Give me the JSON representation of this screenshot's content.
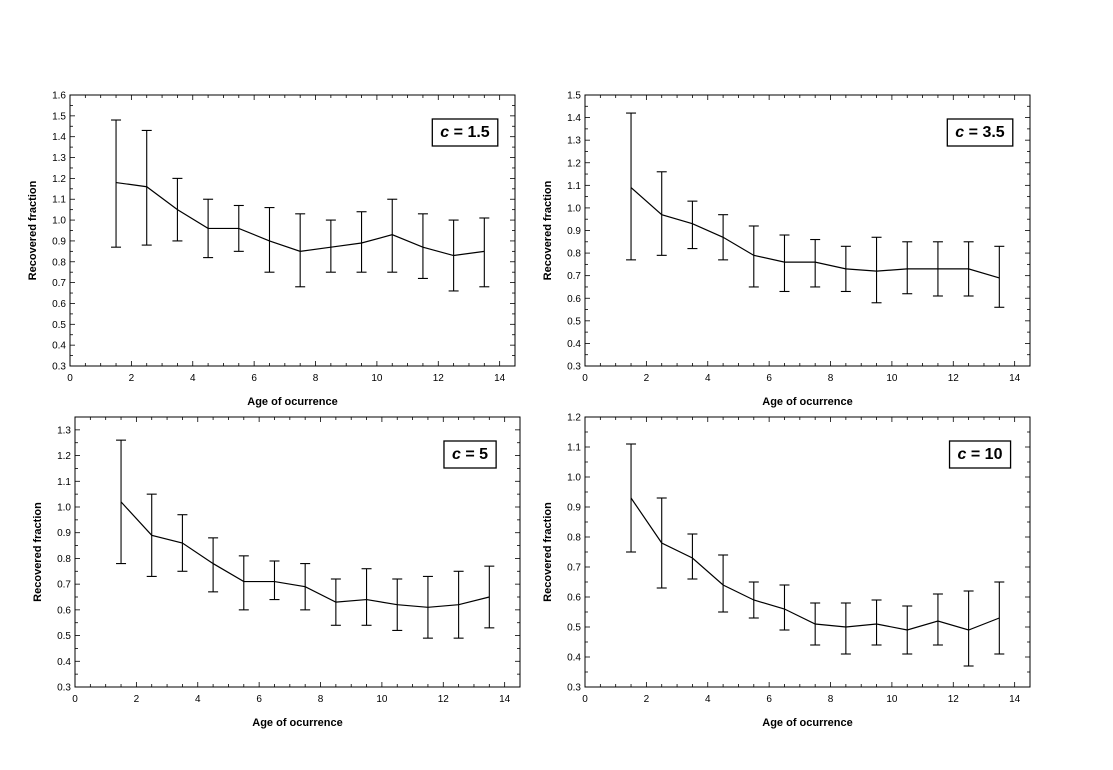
{
  "figure_title": "",
  "chart_data": [
    {
      "type": "line",
      "title": "",
      "legend_variable": "c",
      "legend_value": "1.5",
      "legend_placement": "top-right",
      "xlabel": "Age of ocurrence",
      "ylabel": "Recovered fraction",
      "xlim": [
        0,
        14.5
      ],
      "ylim": [
        0.3,
        1.6
      ],
      "xticks": [
        0,
        2,
        4,
        6,
        8,
        10,
        12,
        14
      ],
      "yticks": [
        0.3,
        0.4,
        0.5,
        0.6,
        0.7,
        0.8,
        0.9,
        1.0,
        1.1,
        1.2,
        1.3,
        1.4,
        1.5,
        1.6
      ],
      "y_decimals": 1,
      "grid": false,
      "series": [
        {
          "name": "Recovered fraction",
          "x": [
            1.5,
            2.5,
            3.5,
            4.5,
            5.5,
            6.5,
            7.5,
            8.5,
            9.5,
            10.5,
            11.5,
            12.5,
            13.5
          ],
          "y": [
            1.18,
            1.16,
            1.05,
            0.96,
            0.96,
            0.9,
            0.85,
            0.87,
            0.89,
            0.93,
            0.87,
            0.83,
            0.85
          ],
          "err_low": [
            0.87,
            0.88,
            0.9,
            0.82,
            0.85,
            0.75,
            0.68,
            0.75,
            0.75,
            0.75,
            0.72,
            0.66,
            0.68
          ],
          "err_high": [
            1.48,
            1.43,
            1.2,
            1.1,
            1.07,
            1.06,
            1.03,
            1.0,
            1.04,
            1.1,
            1.03,
            1.0,
            1.01
          ]
        }
      ]
    },
    {
      "type": "line",
      "title": "",
      "legend_variable": "c",
      "legend_value": "3.5",
      "legend_placement": "top-right",
      "xlabel": "Age of ocurrence",
      "ylabel": "Recovered fraction",
      "xlim": [
        0,
        14.5
      ],
      "ylim": [
        0.3,
        1.5
      ],
      "xticks": [
        0,
        2,
        4,
        6,
        8,
        10,
        12,
        14
      ],
      "yticks": [
        0.3,
        0.4,
        0.5,
        0.6,
        0.7,
        0.8,
        0.9,
        1.0,
        1.1,
        1.2,
        1.3,
        1.4,
        1.5
      ],
      "y_decimals": 1,
      "grid": false,
      "series": [
        {
          "name": "Recovered fraction",
          "x": [
            1.5,
            2.5,
            3.5,
            4.5,
            5.5,
            6.5,
            7.5,
            8.5,
            9.5,
            10.5,
            11.5,
            12.5,
            13.5
          ],
          "y": [
            1.09,
            0.97,
            0.93,
            0.87,
            0.79,
            0.76,
            0.76,
            0.73,
            0.72,
            0.73,
            0.73,
            0.73,
            0.69
          ],
          "err_low": [
            0.77,
            0.79,
            0.82,
            0.77,
            0.65,
            0.63,
            0.65,
            0.63,
            0.58,
            0.62,
            0.61,
            0.61,
            0.56
          ],
          "err_high": [
            1.42,
            1.16,
            1.03,
            0.97,
            0.92,
            0.88,
            0.86,
            0.83,
            0.87,
            0.85,
            0.85,
            0.85,
            0.83
          ]
        }
      ]
    },
    {
      "type": "line",
      "title": "",
      "legend_variable": "c",
      "legend_value": "5",
      "legend_placement": "top-right",
      "xlabel": "Age of ocurrence",
      "ylabel": "Recovered fraction",
      "xlim": [
        0,
        14.5
      ],
      "ylim": [
        0.3,
        1.35
      ],
      "xticks": [
        0,
        2,
        4,
        6,
        8,
        10,
        12,
        14
      ],
      "yticks": [
        0.3,
        0.4,
        0.5,
        0.6,
        0.7,
        0.8,
        0.9,
        1.0,
        1.1,
        1.2,
        1.3
      ],
      "y_decimals": 1,
      "grid": false,
      "series": [
        {
          "name": "Recovered fraction",
          "x": [
            1.5,
            2.5,
            3.5,
            4.5,
            5.5,
            6.5,
            7.5,
            8.5,
            9.5,
            10.5,
            11.5,
            12.5,
            13.5
          ],
          "y": [
            1.02,
            0.89,
            0.86,
            0.78,
            0.71,
            0.71,
            0.69,
            0.63,
            0.64,
            0.62,
            0.61,
            0.62,
            0.65
          ],
          "err_low": [
            0.78,
            0.73,
            0.75,
            0.67,
            0.6,
            0.64,
            0.6,
            0.54,
            0.54,
            0.52,
            0.49,
            0.49,
            0.53
          ],
          "err_high": [
            1.26,
            1.05,
            0.97,
            0.88,
            0.81,
            0.79,
            0.78,
            0.72,
            0.76,
            0.72,
            0.73,
            0.75,
            0.77
          ]
        }
      ]
    },
    {
      "type": "line",
      "title": "",
      "legend_variable": "c",
      "legend_value": "10",
      "legend_placement": "top-right",
      "xlabel": "Age of ocurrence",
      "ylabel": "Recovered fraction",
      "xlim": [
        0,
        14.5
      ],
      "ylim": [
        0.3,
        1.2
      ],
      "xticks": [
        0,
        2,
        4,
        6,
        8,
        10,
        12,
        14
      ],
      "yticks": [
        0.3,
        0.4,
        0.5,
        0.6,
        0.7,
        0.8,
        0.9,
        1.0,
        1.1,
        1.2
      ],
      "y_decimals": 1,
      "grid": false,
      "series": [
        {
          "name": "Recovered fraction",
          "x": [
            1.5,
            2.5,
            3.5,
            4.5,
            5.5,
            6.5,
            7.5,
            8.5,
            9.5,
            10.5,
            11.5,
            12.5,
            13.5
          ],
          "y": [
            0.93,
            0.78,
            0.73,
            0.64,
            0.59,
            0.56,
            0.51,
            0.5,
            0.51,
            0.49,
            0.52,
            0.49,
            0.53
          ],
          "err_low": [
            0.75,
            0.63,
            0.66,
            0.55,
            0.53,
            0.49,
            0.44,
            0.41,
            0.44,
            0.41,
            0.44,
            0.37,
            0.41
          ],
          "err_high": [
            1.11,
            0.93,
            0.81,
            0.74,
            0.65,
            0.64,
            0.58,
            0.58,
            0.59,
            0.57,
            0.61,
            0.62,
            0.65
          ]
        }
      ]
    }
  ]
}
